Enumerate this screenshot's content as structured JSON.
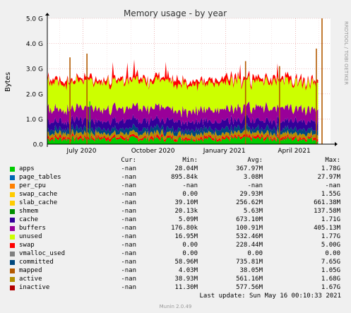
{
  "chart_data": {
    "type": "area",
    "title": "Memory usage - by year",
    "ylabel": "Bytes",
    "side_label": "RRDTOOL / TOBI OETIKER",
    "ylim": [
      0,
      5000000000
    ],
    "y_ticks": [
      {
        "value": 0,
        "label": "0.0"
      },
      {
        "value": 1000000000,
        "label": "1.0 G"
      },
      {
        "value": 2000000000,
        "label": "2.0 G"
      },
      {
        "value": 3000000000,
        "label": "3.0 G"
      },
      {
        "value": 4000000000,
        "label": "4.0 G"
      },
      {
        "value": 5000000000,
        "label": "5.0 G"
      }
    ],
    "x_range": [
      "2020-05-16",
      "2021-05-16"
    ],
    "x_ticks": [
      {
        "date": "2020-07-01",
        "label": "July 2020"
      },
      {
        "date": "2020-10-01",
        "label": "October 2020"
      },
      {
        "date": "2021-01-01",
        "label": "January 2021"
      },
      {
        "date": "2021-04-01",
        "label": "April 2021"
      }
    ],
    "data_end": "2021-04-30",
    "grid": true,
    "series": [
      {
        "name": "apps",
        "color": "#00cc00",
        "typical": 350000000.0,
        "spikes": [
          [
            0.15,
            1700000000.0
          ]
        ]
      },
      {
        "name": "page_tables",
        "color": "#0066b3",
        "typical": 3000000.0,
        "spikes": []
      },
      {
        "name": "per_cpu",
        "color": "#ff8000",
        "typical": 0,
        "spikes": []
      },
      {
        "name": "swap_cache",
        "color": "#ffcc00",
        "typical": 20000000.0,
        "spikes": []
      },
      {
        "name": "slab_cache",
        "color": "#330099",
        "typical": 250000000.0,
        "spikes": []
      },
      {
        "name": "shmem",
        "color": "#990099",
        "typical": 5000000.0,
        "spikes": []
      },
      {
        "name": "cache",
        "color": "#ccff00",
        "typical": 660000000.0,
        "spikes": []
      },
      {
        "name": "buffers",
        "color": "#ff0000",
        "typical": 100000000.0,
        "spikes": []
      },
      {
        "name": "unused",
        "color": "#808080",
        "typical": 520000000.0,
        "spikes": []
      },
      {
        "name": "swap",
        "color": "#008f00",
        "typical": 200000000.0,
        "spikes": []
      },
      {
        "name": "vmalloc_used",
        "color": "#00487d",
        "typical": 0,
        "spikes": []
      },
      {
        "name": "committed",
        "color": "#b35a00",
        "typical": 740000000.0,
        "spikes": [
          [
            0.08,
            3450000000.0
          ],
          [
            0.14,
            3600000000.0
          ],
          [
            0.7,
            3300000000.0
          ],
          [
            0.82,
            3100000000.0
          ],
          [
            0.95,
            3800000000.0
          ],
          [
            0.97,
            5000000000.0
          ]
        ]
      },
      {
        "name": "mapped",
        "color": "#b38f00",
        "typical": 38000000.0,
        "spikes": []
      },
      {
        "name": "active",
        "color": "#6b006b",
        "typical": 560000000.0,
        "spikes": []
      },
      {
        "name": "inactive",
        "color": "#8fb300",
        "typical": 580000000.0,
        "spikes": []
      }
    ]
  },
  "legend": {
    "headers": {
      "cur": "Cur:",
      "min": "Min:",
      "avg": "Avg:",
      "max": "Max:"
    },
    "rows": [
      {
        "name": "apps",
        "color": "#00cc00",
        "cur": "-nan",
        "min": "28.04M",
        "avg": "367.97M",
        "max": "1.78G"
      },
      {
        "name": "page_tables",
        "color": "#0066b3",
        "cur": "-nan",
        "min": "895.84k",
        "avg": "3.08M",
        "max": "27.97M"
      },
      {
        "name": "per_cpu",
        "color": "#ff8000",
        "cur": "-nan",
        "min": "-nan",
        "avg": "-nan",
        "max": "-nan"
      },
      {
        "name": "swap_cache",
        "color": "#ffcc00",
        "cur": "-nan",
        "min": "0.00",
        "avg": "29.93M",
        "max": "1.55G"
      },
      {
        "name": "slab_cache",
        "color": "#ffcc00",
        "cur": "-nan",
        "min": "39.10M",
        "avg": "256.62M",
        "max": "661.38M"
      },
      {
        "name": "shmem",
        "color": "#008f00",
        "cur": "-nan",
        "min": "20.13k",
        "avg": "5.63M",
        "max": "137.58M"
      },
      {
        "name": "cache",
        "color": "#330099",
        "cur": "-nan",
        "min": "5.09M",
        "avg": "673.10M",
        "max": "1.71G"
      },
      {
        "name": "buffers",
        "color": "#990099",
        "cur": "-nan",
        "min": "176.80k",
        "avg": "100.91M",
        "max": "405.13M"
      },
      {
        "name": "unused",
        "color": "#ccff00",
        "cur": "-nan",
        "min": "16.95M",
        "avg": "532.46M",
        "max": "1.77G"
      },
      {
        "name": "swap",
        "color": "#ff0000",
        "cur": "-nan",
        "min": "0.00",
        "avg": "228.44M",
        "max": "5.00G"
      },
      {
        "name": "vmalloc_used",
        "color": "#808080",
        "cur": "-nan",
        "min": "0.00",
        "avg": "0.00",
        "max": "0.00"
      },
      {
        "name": "committed",
        "color": "#00487d",
        "cur": "-nan",
        "min": "58.96M",
        "avg": "735.81M",
        "max": "7.65G"
      },
      {
        "name": "mapped",
        "color": "#b35a00",
        "cur": "-nan",
        "min": "4.03M",
        "avg": "38.05M",
        "max": "1.05G"
      },
      {
        "name": "active",
        "color": "#b38f00",
        "cur": "-nan",
        "min": "38.93M",
        "avg": "561.16M",
        "max": "1.68G"
      },
      {
        "name": "inactive",
        "color": "#b30000",
        "cur": "-nan",
        "min": "11.30M",
        "avg": "577.56M",
        "max": "1.67G"
      }
    ]
  },
  "footer": {
    "last_update": "Last update: Sun May 16 00:10:33 2021",
    "generator": "Munin 2.0.49"
  }
}
